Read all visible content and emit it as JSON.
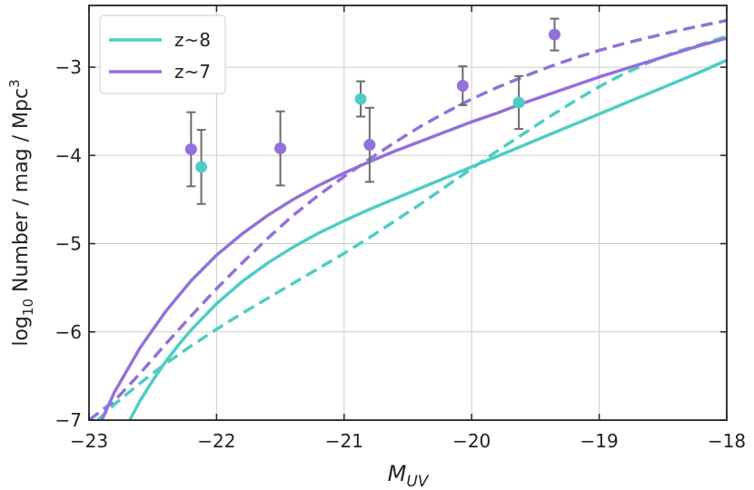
{
  "chart_data": {
    "type": "scatter",
    "xlabel": "M_UV",
    "ylabel": "log10 Number / mag / Mpc^3",
    "xlim": [
      -23,
      -18
    ],
    "ylim": [
      -7,
      -2.3
    ],
    "x_ticks": [
      -23,
      -22,
      -21,
      -20,
      -19,
      -18
    ],
    "y_ticks": [
      -7,
      -6,
      -5,
      -4,
      -3
    ],
    "x_tick_labels": [
      "−23",
      "−22",
      "−21",
      "−20",
      "−19",
      "−18"
    ],
    "y_tick_labels": [
      "−7",
      "−6",
      "−5",
      "−4",
      "−3"
    ],
    "grid": true,
    "legend_position": "top-left",
    "series": [
      {
        "name": "z~8",
        "color": "#4ECDC4",
        "points": [
          {
            "x": -22.12,
            "y": -4.13,
            "yerr_low": 0.42,
            "yerr_high": 0.42
          },
          {
            "x": -20.87,
            "y": -3.36,
            "yerr_low": 0.2,
            "yerr_high": 0.2
          },
          {
            "x": -19.63,
            "y": -3.4,
            "yerr_low": 0.3,
            "yerr_high": 0.3
          }
        ],
        "curves": [
          {
            "style": "solid",
            "x": [
              -22.68,
              -22.6,
              -22.5,
              -22.4,
              -22.3,
              -22.2,
              -22.0,
              -21.8,
              -21.6,
              -21.4,
              -21.2,
              -21.0,
              -20.8,
              -20.6,
              -20.4,
              -20.2,
              -20.0,
              -19.8,
              -19.6,
              -19.4,
              -19.2,
              -19.0,
              -18.8,
              -18.6,
              -18.4,
              -18.2,
              -18.0
            ],
            "y": [
              -7.0,
              -6.78,
              -6.55,
              -6.34,
              -6.15,
              -5.98,
              -5.68,
              -5.43,
              -5.22,
              -5.04,
              -4.88,
              -4.74,
              -4.61,
              -4.49,
              -4.37,
              -4.25,
              -4.13,
              -4.01,
              -3.89,
              -3.77,
              -3.65,
              -3.53,
              -3.41,
              -3.29,
              -3.17,
              -3.05,
              -2.92
            ]
          },
          {
            "style": "dashed",
            "x": [
              -22.93,
              -22.8,
              -22.6,
              -22.4,
              -22.2,
              -22.0,
              -21.8,
              -21.6,
              -21.4,
              -21.2,
              -21.0,
              -20.8,
              -20.6,
              -20.4,
              -20.2,
              -20.0,
              -19.8,
              -19.6,
              -19.4,
              -19.2,
              -19.0,
              -18.8,
              -18.6,
              -18.4,
              -18.2,
              -18.0
            ],
            "y": [
              -7.0,
              -6.82,
              -6.58,
              -6.36,
              -6.16,
              -5.97,
              -5.79,
              -5.62,
              -5.45,
              -5.28,
              -5.11,
              -4.93,
              -4.74,
              -4.55,
              -4.35,
              -4.15,
              -3.95,
              -3.76,
              -3.57,
              -3.39,
              -3.22,
              -3.07,
              -2.94,
              -2.83,
              -2.74,
              -2.65
            ]
          }
        ]
      },
      {
        "name": "z~7",
        "color": "#9370DB",
        "points": [
          {
            "x": -22.2,
            "y": -3.93,
            "yerr_low": 0.42,
            "yerr_high": 0.42
          },
          {
            "x": -21.5,
            "y": -3.92,
            "yerr_low": 0.42,
            "yerr_high": 0.42
          },
          {
            "x": -20.8,
            "y": -3.88,
            "yerr_low": 0.42,
            "yerr_high": 0.42
          },
          {
            "x": -20.07,
            "y": -3.21,
            "yerr_low": 0.22,
            "yerr_high": 0.22
          },
          {
            "x": -19.35,
            "y": -2.63,
            "yerr_low": 0.18,
            "yerr_high": 0.18
          }
        ],
        "curves": [
          {
            "style": "solid",
            "x": [
              -22.9,
              -22.8,
              -22.6,
              -22.4,
              -22.2,
              -22.0,
              -21.8,
              -21.6,
              -21.4,
              -21.2,
              -21.0,
              -20.8,
              -20.6,
              -20.4,
              -20.2,
              -20.0,
              -19.8,
              -19.6,
              -19.4,
              -19.2,
              -19.0,
              -18.8,
              -18.6,
              -18.4,
              -18.2,
              -18.0
            ],
            "y": [
              -7.0,
              -6.68,
              -6.18,
              -5.77,
              -5.42,
              -5.13,
              -4.89,
              -4.68,
              -4.5,
              -4.34,
              -4.2,
              -4.07,
              -3.95,
              -3.84,
              -3.73,
              -3.62,
              -3.52,
              -3.41,
              -3.31,
              -3.21,
              -3.11,
              -3.02,
              -2.93,
              -2.84,
              -2.75,
              -2.67
            ]
          },
          {
            "style": "dashed",
            "x": [
              -23.0,
              -22.8,
              -22.6,
              -22.4,
              -22.2,
              -22.0,
              -21.8,
              -21.6,
              -21.4,
              -21.2,
              -21.0,
              -20.8,
              -20.6,
              -20.4,
              -20.2,
              -20.0,
              -19.8,
              -19.6,
              -19.4,
              -19.2,
              -19.0,
              -18.8,
              -18.6,
              -18.4,
              -18.2,
              -18.0
            ],
            "y": [
              -7.0,
              -6.78,
              -6.47,
              -6.14,
              -5.82,
              -5.51,
              -5.22,
              -4.94,
              -4.68,
              -4.45,
              -4.24,
              -4.04,
              -3.85,
              -3.67,
              -3.51,
              -3.36,
              -3.23,
              -3.11,
              -3.0,
              -2.9,
              -2.81,
              -2.73,
              -2.66,
              -2.59,
              -2.53,
              -2.47
            ]
          }
        ]
      }
    ]
  }
}
